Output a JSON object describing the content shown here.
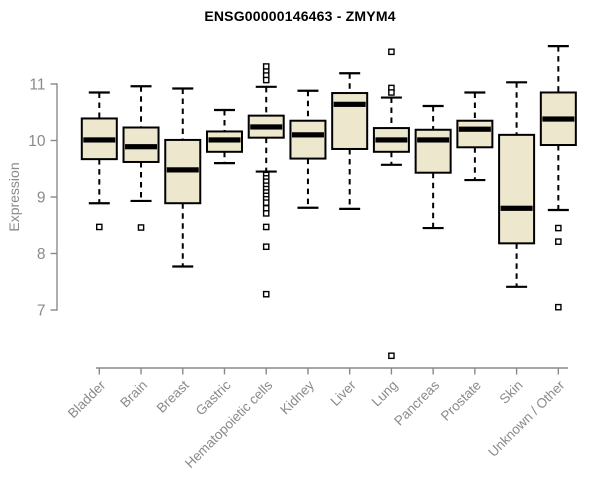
{
  "chart_data": {
    "type": "boxplot",
    "title": "ENSG00000146463 - ZMYM4",
    "ylabel": "Expression",
    "xlabel": "",
    "yticks": [
      7,
      8,
      9,
      10,
      11
    ],
    "ylim": [
      6.1,
      11.8
    ],
    "grid": false,
    "legend": "none",
    "categories": [
      {
        "label": "Bladder",
        "whisker_low": 8.89,
        "q1": 9.67,
        "median": 10.01,
        "q3": 10.39,
        "whisker_high": 10.85,
        "outliers": [
          8.47
        ]
      },
      {
        "label": "Brain",
        "whisker_low": 8.93,
        "q1": 9.62,
        "median": 9.89,
        "q3": 10.23,
        "whisker_high": 10.96,
        "outliers": [
          8.46
        ]
      },
      {
        "label": "Breast",
        "whisker_low": 7.77,
        "q1": 8.89,
        "median": 9.48,
        "q3": 10.01,
        "whisker_high": 10.92,
        "outliers": []
      },
      {
        "label": "Gastric",
        "whisker_low": 9.6,
        "q1": 9.8,
        "median": 10.01,
        "q3": 10.16,
        "whisker_high": 10.54,
        "outliers": []
      },
      {
        "label": "Hematopoietic cells",
        "whisker_low": 9.45,
        "q1": 10.05,
        "median": 10.24,
        "q3": 10.44,
        "whisker_high": 10.95,
        "outliers": [
          11.31,
          11.22,
          11.15,
          11.07,
          9.39,
          9.33,
          9.27,
          9.2,
          9.14,
          9.08,
          9.02,
          8.96,
          8.9,
          8.8,
          8.71,
          8.47,
          8.12,
          7.28
        ]
      },
      {
        "label": "Kidney",
        "whisker_low": 8.81,
        "q1": 9.68,
        "median": 10.1,
        "q3": 10.35,
        "whisker_high": 10.88,
        "outliers": []
      },
      {
        "label": "Liver",
        "whisker_low": 8.79,
        "q1": 9.85,
        "median": 10.64,
        "q3": 10.84,
        "whisker_high": 11.19,
        "outliers": []
      },
      {
        "label": "Lung",
        "whisker_low": 9.57,
        "q1": 9.8,
        "median": 10.01,
        "q3": 10.22,
        "whisker_high": 10.76,
        "outliers": [
          11.57,
          10.93,
          10.85,
          6.19
        ]
      },
      {
        "label": "Pancreas",
        "whisker_low": 8.45,
        "q1": 9.43,
        "median": 10.01,
        "q3": 10.19,
        "whisker_high": 10.61,
        "outliers": []
      },
      {
        "label": "Prostate",
        "whisker_low": 9.3,
        "q1": 9.88,
        "median": 10.2,
        "q3": 10.35,
        "whisker_high": 10.85,
        "outliers": []
      },
      {
        "label": "Skin",
        "whisker_low": 7.41,
        "q1": 8.18,
        "median": 8.8,
        "q3": 10.1,
        "whisker_high": 11.03,
        "outliers": []
      },
      {
        "label": "Unknown / Other",
        "whisker_low": 8.77,
        "q1": 9.92,
        "median": 10.38,
        "q3": 10.85,
        "whisker_high": 11.67,
        "outliers": [
          8.45,
          8.21,
          7.05
        ]
      }
    ],
    "colors": {
      "box_fill": "#ede8cd",
      "box_border": "#000000",
      "median": "#000000",
      "whisker": "#000000",
      "outlier_fill": "#ffffff",
      "axis": "#8a8a8a",
      "tick_label": "#8a8a8a",
      "title": "#000000"
    }
  }
}
